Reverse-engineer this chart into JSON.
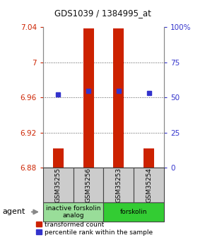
{
  "title": "GDS1039 / 1384995_at",
  "samples": [
    "GSM35255",
    "GSM35256",
    "GSM35253",
    "GSM35254"
  ],
  "bar_values": [
    6.902,
    7.038,
    7.038,
    6.902
  ],
  "bar_bottom": 6.88,
  "bar_color": "#cc2200",
  "percentile_values": [
    6.963,
    6.967,
    6.967,
    6.965
  ],
  "percentile_color": "#3333cc",
  "ylim_left": [
    6.88,
    7.04
  ],
  "ylim_right": [
    0,
    100
  ],
  "yticks_left": [
    6.88,
    6.92,
    6.96,
    7.0,
    7.04
  ],
  "yticks_right": [
    0,
    25,
    50,
    75,
    100
  ],
  "ytick_labels_left": [
    "6.88",
    "6.92",
    "6.96",
    "7",
    "7.04"
  ],
  "ytick_labels_right": [
    "0",
    "25",
    "50",
    "75",
    "100%"
  ],
  "groups": [
    {
      "label": "inactive forskolin\nanalog",
      "samples": [
        0,
        1
      ],
      "color": "#99dd99"
    },
    {
      "label": "forskolin",
      "samples": [
        2,
        3
      ],
      "color": "#33cc33"
    }
  ],
  "agent_label": "agent",
  "legend_red_label": "transformed count",
  "legend_blue_label": "percentile rank within the sample",
  "title_color": "#111111",
  "left_tick_color": "#cc2200",
  "right_tick_color": "#3333cc",
  "sample_box_color": "#cccccc",
  "grid_color": "#555555",
  "bar_width": 0.35
}
